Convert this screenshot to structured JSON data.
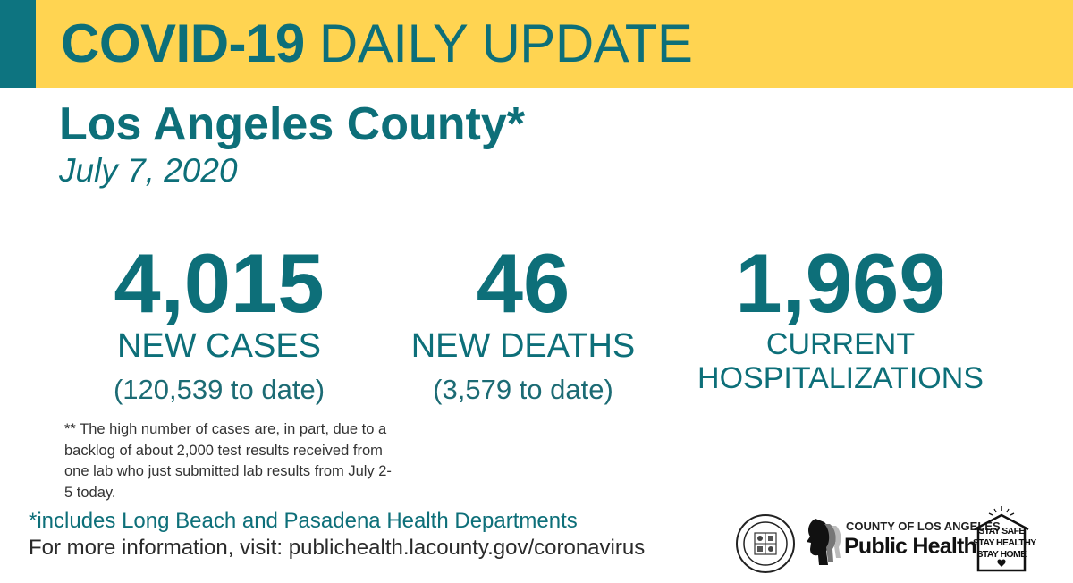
{
  "banner": {
    "title_bold": "COVID-19",
    "title_rest": "DAILY UPDATE",
    "colors": {
      "banner": "#ffd451",
      "accent": "#0d7480",
      "text": "#0d6f79"
    }
  },
  "county": "Los Angeles County*",
  "date": "July 7, 2020",
  "stats": {
    "cases": {
      "value": "4,015",
      "label": "NEW CASES",
      "to_date": "(120,539 to date)"
    },
    "deaths": {
      "value": "46",
      "label": "NEW DEATHS",
      "to_date": "(3,579 to date)"
    },
    "hospitalizations": {
      "value": "1,969",
      "label_line1": "CURRENT",
      "label_line2": "HOSPITALIZATIONS"
    }
  },
  "note": "** The high number of cases are, in part, due to a backlog of about 2,000 test results received from one lab who just submitted lab results from July 2-5 today.",
  "footer": {
    "includes": "*includes Long Beach and Pasadena Health Departments",
    "more_info": "For more information, visit: publichealth.lacounty.gov/coronavirus"
  },
  "logos": {
    "seal_icon": "county-seal-icon",
    "public_health_small": "COUNTY OF LOS ANGELES",
    "public_health_big": "Public Health",
    "stay": [
      "STAY SAFE",
      "STAY HEALTHY",
      "STAY HOME"
    ]
  }
}
